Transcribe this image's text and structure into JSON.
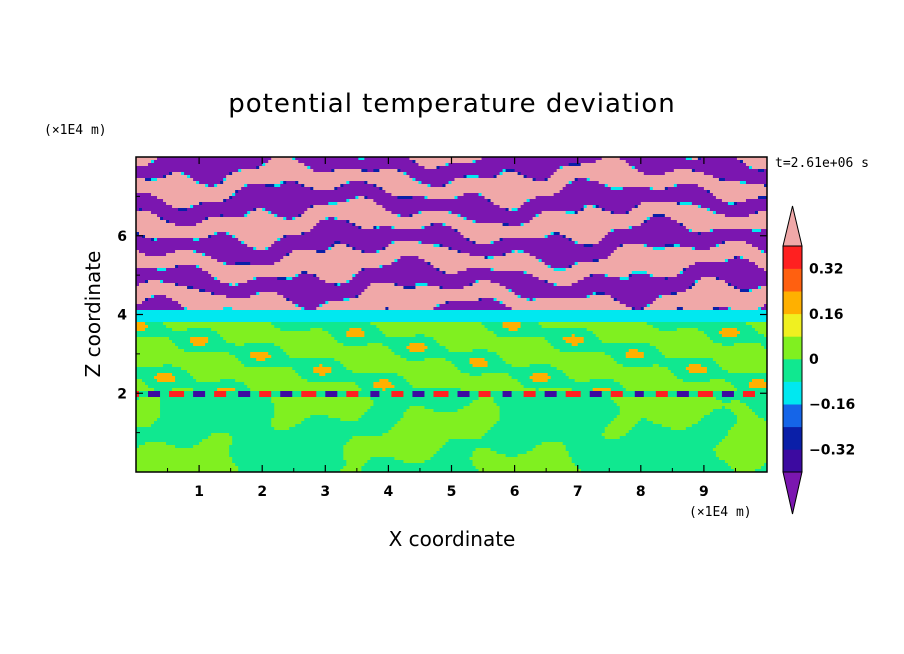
{
  "chart_data": {
    "type": "heatmap",
    "title": "potential temperature deviation",
    "xlabel": "X coordinate",
    "ylabel": "Z coordinate",
    "x_scale_note": "(×1E4 m)",
    "y_scale_note": "(×1E4 m)",
    "time_label": "t=2.61e+06 s",
    "xlim": [
      0,
      10
    ],
    "ylim": [
      0,
      8
    ],
    "x_ticks": [
      "1",
      "2",
      "3",
      "4",
      "5",
      "6",
      "7",
      "8",
      "9"
    ],
    "y_ticks": [
      "2",
      "4",
      "6"
    ],
    "colorbar": {
      "levels": [
        -0.48,
        -0.4,
        -0.32,
        -0.24,
        -0.16,
        -0.08,
        0,
        0.08,
        0.16,
        0.24,
        0.32,
        0.4,
        0.48
      ],
      "labeled_values": [
        "0.32",
        "0.16",
        "0",
        "−0.16",
        "−0.32"
      ],
      "colors": [
        "#7b16b0",
        "#3c0aa0",
        "#0a1fa8",
        "#1565e8",
        "#00e8f0",
        "#10e890",
        "#80f020",
        "#f0f020",
        "#ffb000",
        "#ff6010",
        "#ff2020",
        "#f0a8a8"
      ],
      "extend": "both"
    },
    "layers": [
      {
        "z_range": [
          0,
          2
        ],
        "description_value": "mostly near 0 to -0.08 with 0 to 0.08 patches"
      },
      {
        "z_range": [
          2,
          3.8
        ],
        "description_value": "about -0.08 to 0.08"
      },
      {
        "z_range": [
          3.8,
          4.1
        ],
        "description_value": "about -0.16 to -0.08"
      },
      {
        "z_range": [
          4.1,
          8
        ],
        "description_value": "alternating bands above 0.48 and below -0.48"
      }
    ]
  }
}
